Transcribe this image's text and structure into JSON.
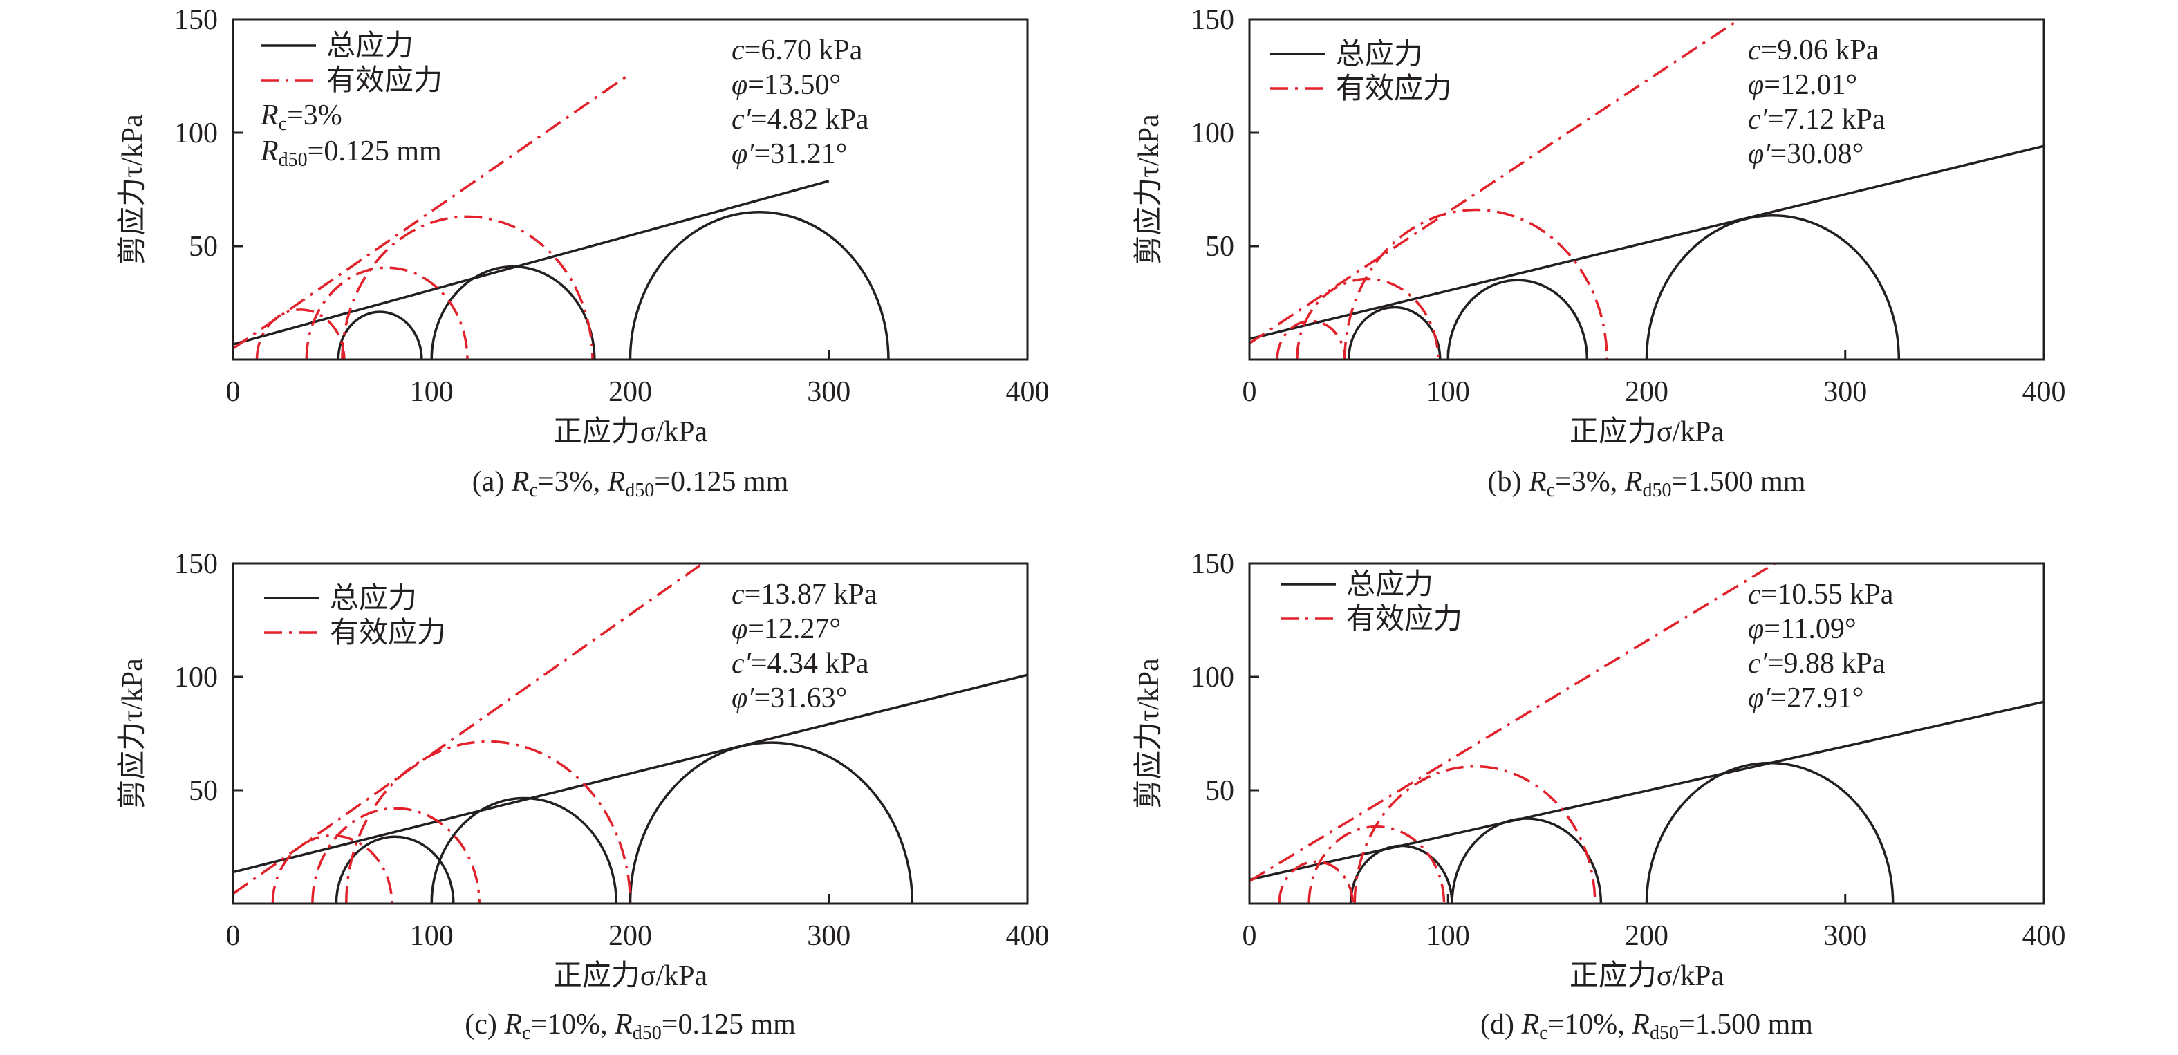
{
  "colors": {
    "total": "#231f20",
    "effective": "#e2212b"
  },
  "chart_data": [
    {
      "type": "line",
      "panel": "a",
      "caption": {
        "prefix": "(a) ",
        "r1": "R",
        "r1sub": "c",
        "r1rest": "=3%, ",
        "r2": "R",
        "r2sub": "d50",
        "r2rest": "=0.125 mm"
      },
      "xlabel": "正应力σ/kPa",
      "ylabel": "剪应力τ/kPa",
      "xlim": [
        0,
        400
      ],
      "ylim": [
        0,
        150
      ],
      "xticks": [
        "0",
        "100",
        "200",
        "300",
        "400"
      ],
      "yticks": [
        "50",
        "100",
        "150"
      ],
      "legend": [
        "总应力",
        "有效应力"
      ],
      "legend_placement": "top-left",
      "note": {
        "l1": "R",
        "l1sub": "c",
        "l1rest": "=3%",
        "l2": "R",
        "l2sub": "d50",
        "l2rest": "=0.125 mm"
      },
      "params": [
        {
          "sym": "c",
          "val": "=6.70 kPa"
        },
        {
          "sym": "φ",
          "val": "=13.50°"
        },
        {
          "sym": "c′",
          "val": "=4.82 kPa"
        },
        {
          "sym": "φ′",
          "val": "=31.21°"
        }
      ],
      "total_envelope": {
        "c": 6.7,
        "phi": 13.5,
        "x_end": 300
      },
      "effective_envelope": {
        "c": 4.82,
        "phi": 31.21,
        "x_end": 200
      },
      "total_circles": [
        [
          53,
          95
        ],
        [
          100,
          182
        ],
        [
          200,
          330
        ]
      ],
      "effective_circles": [
        [
          12,
          56
        ],
        [
          37,
          118
        ],
        [
          55,
          181
        ]
      ]
    },
    {
      "type": "line",
      "panel": "b",
      "caption": {
        "prefix": "(b) ",
        "r1": "R",
        "r1sub": "c",
        "r1rest": "=3%, ",
        "r2": "R",
        "r2sub": "d50",
        "r2rest": "=1.500 mm"
      },
      "xlabel": "正应力σ/kPa",
      "ylabel": "剪应力τ/kPa",
      "xlim": [
        0,
        400
      ],
      "ylim": [
        0,
        150
      ],
      "xticks": [
        "0",
        "100",
        "200",
        "300",
        "400"
      ],
      "yticks": [
        "50",
        "100",
        "150"
      ],
      "legend": [
        "总应力",
        "有效应力"
      ],
      "legend_placement": "top-left",
      "params": [
        {
          "sym": "c",
          "val": "=9.06 kPa"
        },
        {
          "sym": "φ",
          "val": "=12.01°"
        },
        {
          "sym": "c′",
          "val": "=7.12 kPa"
        },
        {
          "sym": "φ′",
          "val": "=30.08°"
        }
      ],
      "total_envelope": {
        "c": 9.06,
        "phi": 12.01,
        "x_end": 400
      },
      "effective_envelope": {
        "c": 7.12,
        "phi": 30.08,
        "x_end": 400
      },
      "total_circles": [
        [
          50,
          96
        ],
        [
          100,
          170
        ],
        [
          200,
          327
        ]
      ],
      "effective_circles": [
        [
          14,
          48
        ],
        [
          24,
          95
        ],
        [
          48,
          180
        ]
      ]
    },
    {
      "type": "line",
      "panel": "c",
      "caption": {
        "prefix": "(c) ",
        "r1": "R",
        "r1sub": "c",
        "r1rest": "=10%, ",
        "r2": "R",
        "r2sub": "d50",
        "r2rest": "=0.125 mm"
      },
      "xlabel": "正应力σ/kPa",
      "ylabel": "剪应力τ/kPa",
      "xlim": [
        0,
        400
      ],
      "ylim": [
        0,
        150
      ],
      "xticks": [
        "0",
        "100",
        "200",
        "300",
        "400"
      ],
      "yticks": [
        "50",
        "100",
        "150"
      ],
      "legend": [
        "总应力",
        "有效应力"
      ],
      "legend_placement": "top-left",
      "params": [
        {
          "sym": "c",
          "val": "=13.87 kPa"
        },
        {
          "sym": "φ",
          "val": "=12.27°"
        },
        {
          "sym": "c′",
          "val": "=4.34 kPa"
        },
        {
          "sym": "φ′",
          "val": "=31.63°"
        }
      ],
      "total_envelope": {
        "c": 13.87,
        "phi": 12.27,
        "x_end": 400
      },
      "effective_envelope": {
        "c": 4.34,
        "phi": 31.63,
        "x_end": 400
      },
      "total_circles": [
        [
          52,
          111
        ],
        [
          100,
          193
        ],
        [
          200,
          342
        ]
      ],
      "effective_circles": [
        [
          20,
          80
        ],
        [
          40,
          124
        ],
        [
          57,
          200
        ]
      ]
    },
    {
      "type": "line",
      "panel": "d",
      "caption": {
        "prefix": "(d) ",
        "r1": "R",
        "r1sub": "c",
        "r1rest": "=10%, ",
        "r2": "R",
        "r2sub": "d50",
        "r2rest": "=1.500 mm"
      },
      "xlabel": "正应力σ/kPa",
      "ylabel": "剪应力τ/kPa",
      "xlim": [
        0,
        400
      ],
      "ylim": [
        0,
        150
      ],
      "xticks": [
        "0",
        "100",
        "200",
        "300",
        "400"
      ],
      "yticks": [
        "50",
        "100",
        "150"
      ],
      "legend": [
        "总应力",
        "有效应力"
      ],
      "legend_placement": "top-left",
      "params": [
        {
          "sym": "c",
          "val": "=10.55 kPa"
        },
        {
          "sym": "φ",
          "val": "=11.09°"
        },
        {
          "sym": "c′",
          "val": "=9.88 kPa"
        },
        {
          "sym": "φ′",
          "val": "=27.91°"
        }
      ],
      "total_envelope": {
        "c": 10.55,
        "phi": 11.09,
        "x_end": 400
      },
      "effective_envelope": {
        "c": 9.88,
        "phi": 27.91,
        "x_end": 400
      },
      "total_circles": [
        [
          51,
          102
        ],
        [
          102,
          177
        ],
        [
          200,
          324
        ]
      ],
      "effective_circles": [
        [
          15,
          52
        ],
        [
          30,
          98
        ],
        [
          53,
          174
        ]
      ]
    }
  ]
}
